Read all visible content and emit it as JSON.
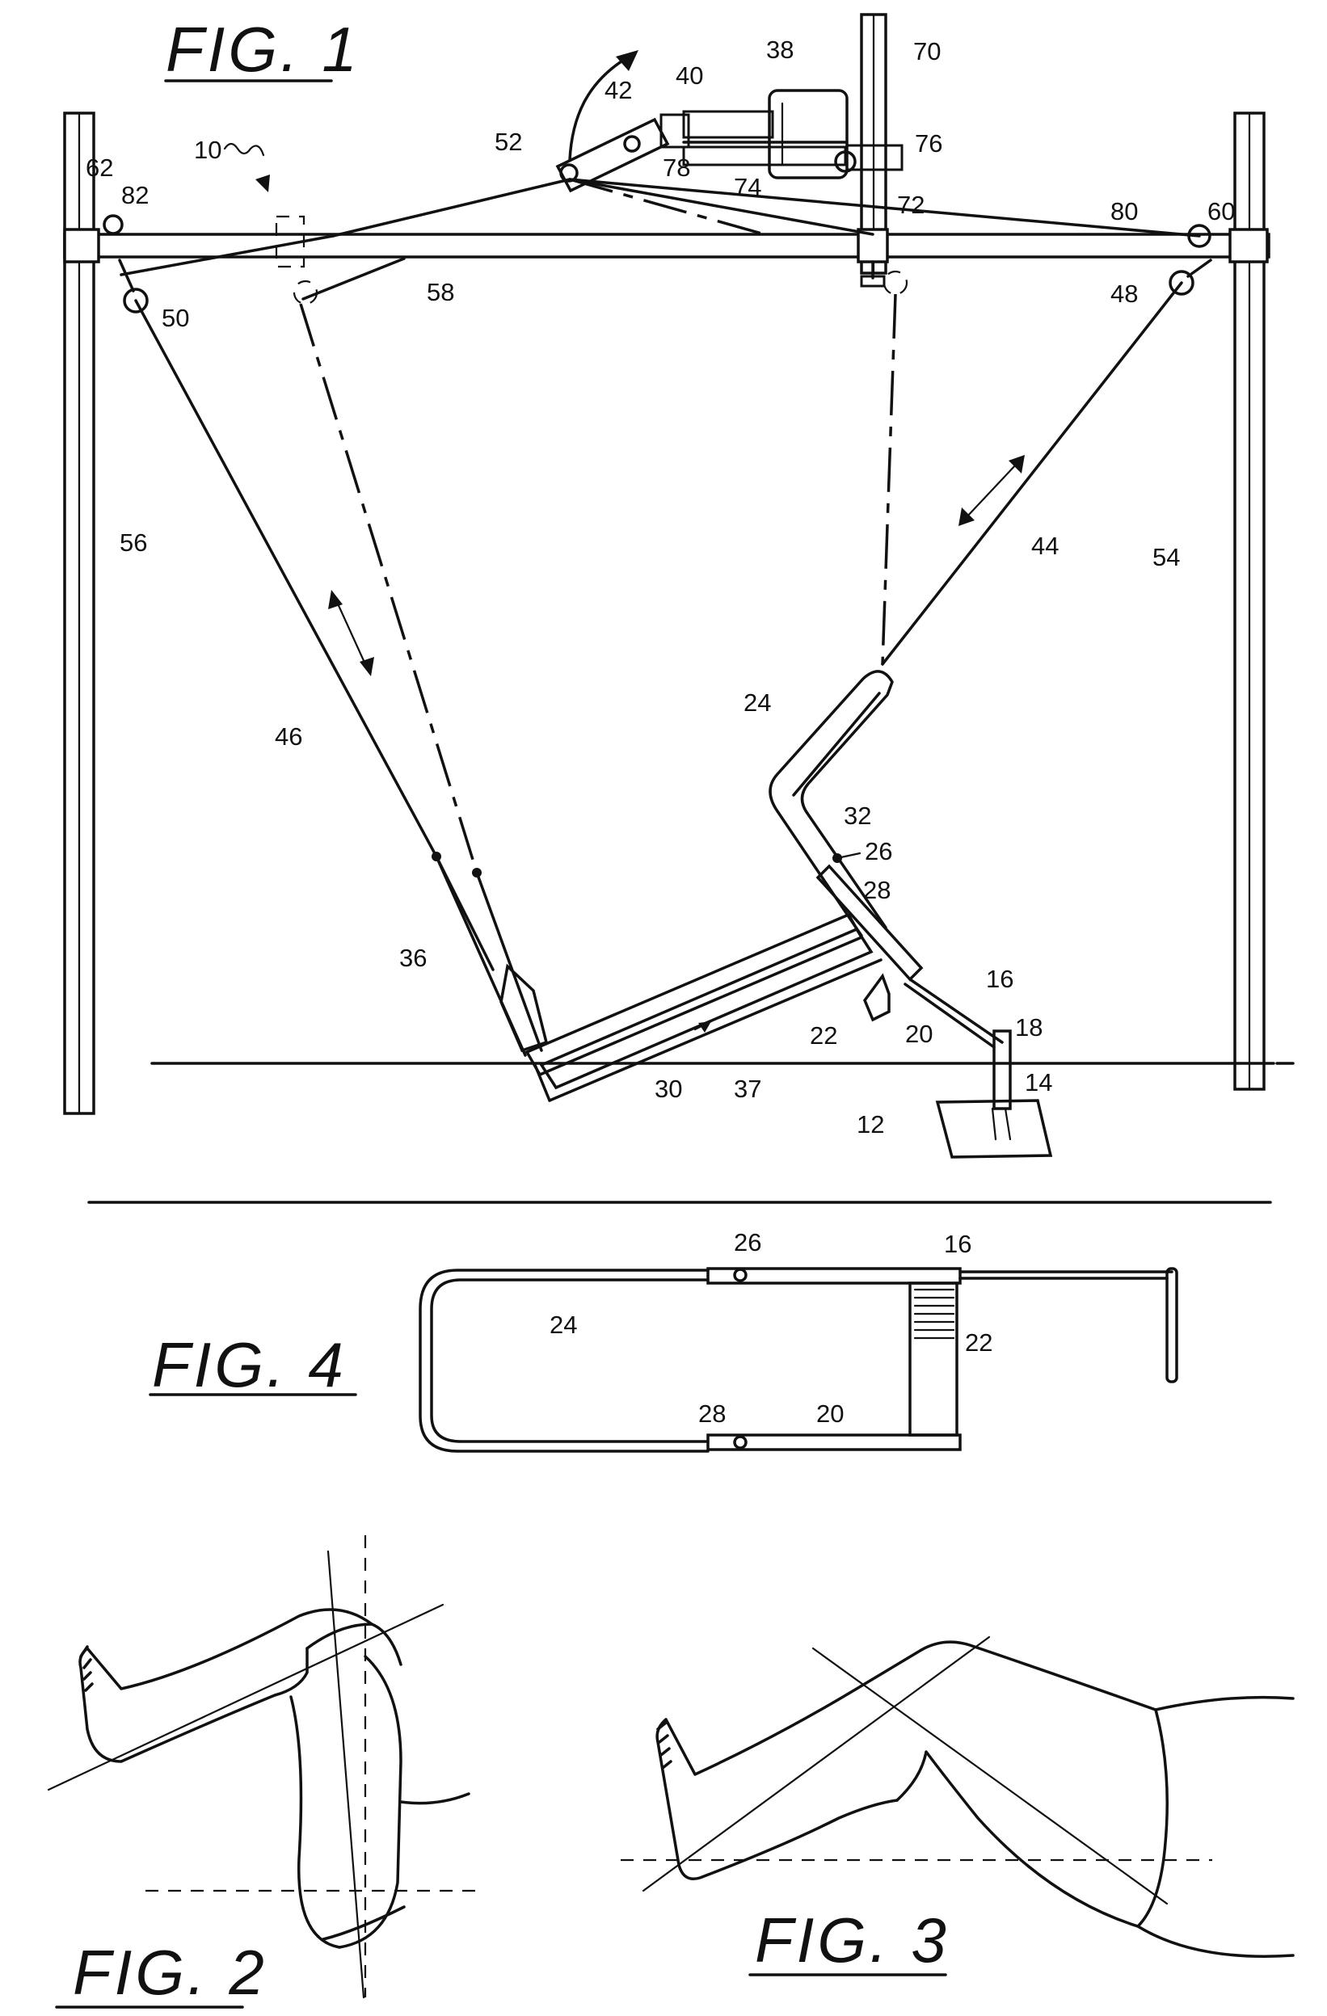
{
  "figures": {
    "fig1": "FIG. 1",
    "fig2": "FIG. 2",
    "fig3": "FIG. 3",
    "fig4": "FIG. 4"
  },
  "fig1_labels": {
    "n10": "10",
    "n12": "12",
    "n14": "14",
    "n16": "16",
    "n18": "18",
    "n20": "20",
    "n22": "22",
    "n24": "24",
    "n26": "26",
    "n28": "28",
    "n30": "30",
    "n32": "32",
    "n36": "36",
    "n37": "37",
    "n38": "38",
    "n40": "40",
    "n42": "42",
    "n44": "44",
    "n46": "46",
    "n48": "48",
    "n50": "50",
    "n52": "52",
    "n54": "54",
    "n56": "56",
    "n58": "58",
    "n60": "60",
    "n62": "62",
    "n70": "70",
    "n72": "72",
    "n74": "74",
    "n76": "76",
    "n78": "78",
    "n80": "80",
    "n82": "82"
  },
  "fig4_labels": {
    "n16": "16",
    "n20": "20",
    "n22": "22",
    "n24": "24",
    "n26": "26",
    "n28": "28"
  }
}
